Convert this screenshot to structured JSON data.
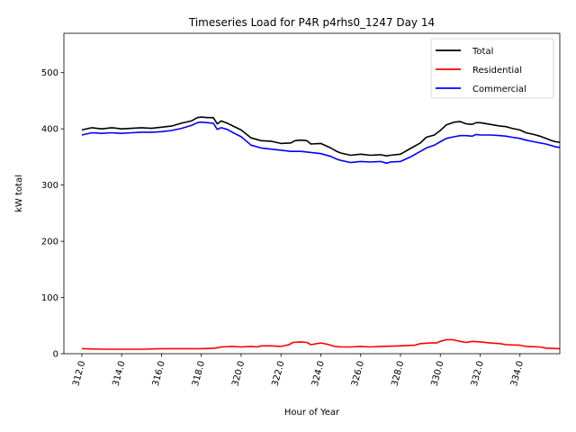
{
  "chart_data": {
    "type": "line",
    "title": "Timeseries Load for P4R p4rhs0_1247  Day 14",
    "xlabel": "Hour of Year",
    "ylabel": "kW total",
    "xlim": [
      311.1,
      336.0
    ],
    "ylim": [
      0,
      570
    ],
    "x_ticks": [
      312,
      314,
      316,
      318,
      320,
      322,
      324,
      326,
      328,
      330,
      332,
      334
    ],
    "x_tick_labels": [
      "312.0",
      "314.0",
      "316.0",
      "318.0",
      "320.0",
      "322.0",
      "324.0",
      "326.0",
      "328.0",
      "330.0",
      "332.0",
      "334.0"
    ],
    "y_ticks": [
      0,
      100,
      200,
      300,
      400,
      500
    ],
    "y_tick_labels": [
      "0",
      "100",
      "200",
      "300",
      "400",
      "500"
    ],
    "legend_position": "top-right",
    "grid": false,
    "series": [
      {
        "name": "Total",
        "color": "#000000",
        "points": [
          [
            312.0,
            398
          ],
          [
            312.5,
            402
          ],
          [
            313.0,
            400
          ],
          [
            313.5,
            402
          ],
          [
            314.0,
            400
          ],
          [
            314.5,
            401
          ],
          [
            315.0,
            402
          ],
          [
            315.5,
            401
          ],
          [
            316.0,
            403
          ],
          [
            316.5,
            405
          ],
          [
            317.0,
            410
          ],
          [
            317.5,
            414
          ],
          [
            317.8,
            420
          ],
          [
            318.0,
            421
          ],
          [
            318.3,
            420
          ],
          [
            318.6,
            420
          ],
          [
            318.8,
            409
          ],
          [
            319.0,
            414
          ],
          [
            319.3,
            410
          ],
          [
            319.6,
            405
          ],
          [
            320.0,
            398
          ],
          [
            320.5,
            384
          ],
          [
            321.0,
            379
          ],
          [
            321.5,
            378
          ],
          [
            322.0,
            374
          ],
          [
            322.5,
            375
          ],
          [
            322.7,
            379
          ],
          [
            323.0,
            380
          ],
          [
            323.3,
            379
          ],
          [
            323.5,
            373
          ],
          [
            324.0,
            374
          ],
          [
            324.5,
            366
          ],
          [
            324.8,
            360
          ],
          [
            325.0,
            357
          ],
          [
            325.5,
            353
          ],
          [
            326.0,
            355
          ],
          [
            326.5,
            353
          ],
          [
            327.0,
            354
          ],
          [
            327.3,
            352
          ],
          [
            327.5,
            353
          ],
          [
            328.0,
            355
          ],
          [
            328.5,
            365
          ],
          [
            329.0,
            375
          ],
          [
            329.3,
            385
          ],
          [
            329.7,
            389
          ],
          [
            330.0,
            397
          ],
          [
            330.3,
            407
          ],
          [
            330.7,
            412
          ],
          [
            331.0,
            413
          ],
          [
            331.3,
            409
          ],
          [
            331.6,
            408
          ],
          [
            331.8,
            411
          ],
          [
            332.0,
            411
          ],
          [
            332.5,
            408
          ],
          [
            333.0,
            405
          ],
          [
            333.3,
            404
          ],
          [
            333.6,
            401
          ],
          [
            334.0,
            398
          ],
          [
            334.3,
            393
          ],
          [
            334.7,
            390
          ],
          [
            335.0,
            387
          ],
          [
            335.3,
            383
          ],
          [
            335.6,
            379
          ],
          [
            335.8,
            377
          ],
          [
            336.0,
            376
          ]
        ]
      },
      {
        "name": "Residential",
        "color": "#ff0000",
        "points": [
          [
            312.0,
            9
          ],
          [
            313.0,
            8
          ],
          [
            314.0,
            8
          ],
          [
            315.0,
            8
          ],
          [
            316.0,
            9
          ],
          [
            317.0,
            9
          ],
          [
            318.0,
            9
          ],
          [
            318.7,
            10
          ],
          [
            319.0,
            12
          ],
          [
            319.5,
            13
          ],
          [
            320.0,
            12
          ],
          [
            320.5,
            13
          ],
          [
            320.8,
            12
          ],
          [
            321.0,
            14
          ],
          [
            321.5,
            14
          ],
          [
            322.0,
            13
          ],
          [
            322.4,
            16
          ],
          [
            322.6,
            20
          ],
          [
            323.0,
            21
          ],
          [
            323.3,
            20
          ],
          [
            323.5,
            16
          ],
          [
            324.0,
            19
          ],
          [
            324.3,
            17
          ],
          [
            324.7,
            13
          ],
          [
            325.0,
            12
          ],
          [
            325.5,
            12
          ],
          [
            326.0,
            13
          ],
          [
            326.5,
            12
          ],
          [
            327.0,
            13
          ],
          [
            328.0,
            14
          ],
          [
            328.7,
            15
          ],
          [
            329.0,
            18
          ],
          [
            329.5,
            19
          ],
          [
            329.8,
            19
          ],
          [
            330.0,
            22
          ],
          [
            330.3,
            25
          ],
          [
            330.6,
            25
          ],
          [
            331.0,
            22
          ],
          [
            331.3,
            20
          ],
          [
            331.6,
            22
          ],
          [
            332.0,
            21
          ],
          [
            332.5,
            19
          ],
          [
            333.0,
            18
          ],
          [
            333.3,
            16
          ],
          [
            334.0,
            15
          ],
          [
            334.3,
            13
          ],
          [
            335.0,
            12
          ],
          [
            335.3,
            10
          ],
          [
            336.0,
            9
          ]
        ]
      },
      {
        "name": "Commercial",
        "color": "#0000ff",
        "points": [
          [
            312.0,
            389
          ],
          [
            312.5,
            393
          ],
          [
            313.0,
            392
          ],
          [
            313.5,
            393
          ],
          [
            314.0,
            392
          ],
          [
            314.5,
            393
          ],
          [
            315.0,
            394
          ],
          [
            315.5,
            394
          ],
          [
            316.0,
            395
          ],
          [
            316.5,
            397
          ],
          [
            317.0,
            401
          ],
          [
            317.5,
            406
          ],
          [
            317.8,
            411
          ],
          [
            318.0,
            412
          ],
          [
            318.3,
            411
          ],
          [
            318.6,
            410
          ],
          [
            318.8,
            399
          ],
          [
            319.0,
            402
          ],
          [
            319.3,
            399
          ],
          [
            319.6,
            393
          ],
          [
            320.0,
            386
          ],
          [
            320.5,
            371
          ],
          [
            321.0,
            366
          ],
          [
            321.5,
            364
          ],
          [
            322.0,
            362
          ],
          [
            322.5,
            360
          ],
          [
            323.0,
            360
          ],
          [
            323.5,
            358
          ],
          [
            324.0,
            356
          ],
          [
            324.5,
            351
          ],
          [
            324.8,
            346
          ],
          [
            325.0,
            344
          ],
          [
            325.5,
            340
          ],
          [
            326.0,
            342
          ],
          [
            326.5,
            341
          ],
          [
            327.0,
            342
          ],
          [
            327.3,
            339
          ],
          [
            327.5,
            341
          ],
          [
            328.0,
            342
          ],
          [
            328.5,
            350
          ],
          [
            329.0,
            360
          ],
          [
            329.3,
            366
          ],
          [
            329.7,
            371
          ],
          [
            330.0,
            377
          ],
          [
            330.3,
            383
          ],
          [
            330.7,
            386
          ],
          [
            331.0,
            388
          ],
          [
            331.3,
            388
          ],
          [
            331.6,
            387
          ],
          [
            331.8,
            390
          ],
          [
            332.0,
            389
          ],
          [
            332.5,
            389
          ],
          [
            333.0,
            388
          ],
          [
            333.3,
            387
          ],
          [
            333.6,
            385
          ],
          [
            334.0,
            383
          ],
          [
            334.3,
            380
          ],
          [
            334.7,
            377
          ],
          [
            335.0,
            375
          ],
          [
            335.3,
            373
          ],
          [
            335.6,
            370
          ],
          [
            335.8,
            368
          ],
          [
            336.0,
            367
          ]
        ]
      }
    ]
  }
}
